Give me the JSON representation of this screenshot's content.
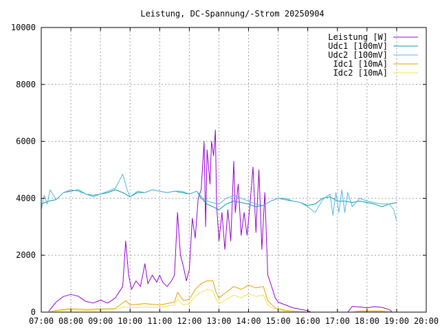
{
  "chart_data": {
    "type": "line",
    "title": "Leistung, DC-Spannung/-Strom 20250904",
    "xlabel": "",
    "ylabel": "",
    "xlim": [
      7,
      20
    ],
    "ylim": [
      0,
      10000
    ],
    "x_ticks": [
      "07:00",
      "08:00",
      "09:00",
      "10:00",
      "11:00",
      "12:00",
      "13:00",
      "14:00",
      "15:00",
      "16:00",
      "17:00",
      "18:00",
      "19:00",
      "20:00"
    ],
    "y_ticks": [
      "0",
      "2000",
      "4000",
      "6000",
      "8000",
      "10000"
    ],
    "grid": true,
    "legend_position": "top-right",
    "series": [
      {
        "name": "Leistung [W]",
        "color": "#9400d3",
        "points": [
          [
            7.25,
            30
          ],
          [
            7.5,
            350
          ],
          [
            7.75,
            550
          ],
          [
            8.0,
            620
          ],
          [
            8.25,
            560
          ],
          [
            8.5,
            380
          ],
          [
            8.75,
            320
          ],
          [
            9.0,
            420
          ],
          [
            9.25,
            320
          ],
          [
            9.5,
            500
          ],
          [
            9.75,
            900
          ],
          [
            9.85,
            2500
          ],
          [
            9.95,
            1300
          ],
          [
            10.05,
            800
          ],
          [
            10.2,
            1100
          ],
          [
            10.35,
            900
          ],
          [
            10.5,
            1700
          ],
          [
            10.6,
            1000
          ],
          [
            10.75,
            1300
          ],
          [
            10.9,
            1050
          ],
          [
            11.0,
            1300
          ],
          [
            11.1,
            1050
          ],
          [
            11.25,
            900
          ],
          [
            11.4,
            1100
          ],
          [
            11.5,
            1300
          ],
          [
            11.6,
            3500
          ],
          [
            11.7,
            2000
          ],
          [
            11.8,
            1600
          ],
          [
            11.9,
            1100
          ],
          [
            12.0,
            1500
          ],
          [
            12.1,
            3300
          ],
          [
            12.2,
            2600
          ],
          [
            12.3,
            4000
          ],
          [
            12.4,
            4300
          ],
          [
            12.5,
            6000
          ],
          [
            12.55,
            3000
          ],
          [
            12.6,
            5700
          ],
          [
            12.7,
            4500
          ],
          [
            12.75,
            6000
          ],
          [
            12.82,
            5500
          ],
          [
            12.88,
            6400
          ],
          [
            12.92,
            3800
          ],
          [
            13.0,
            2500
          ],
          [
            13.1,
            3500
          ],
          [
            13.2,
            2200
          ],
          [
            13.3,
            3600
          ],
          [
            13.4,
            2500
          ],
          [
            13.5,
            5300
          ],
          [
            13.55,
            3500
          ],
          [
            13.65,
            4500
          ],
          [
            13.75,
            2700
          ],
          [
            13.85,
            3500
          ],
          [
            13.95,
            2700
          ],
          [
            14.05,
            3800
          ],
          [
            14.15,
            5100
          ],
          [
            14.25,
            2800
          ],
          [
            14.35,
            5000
          ],
          [
            14.45,
            2200
          ],
          [
            14.55,
            4200
          ],
          [
            14.65,
            1300
          ],
          [
            14.75,
            1000
          ],
          [
            14.9,
            500
          ],
          [
            15.0,
            350
          ],
          [
            15.25,
            250
          ],
          [
            15.5,
            150
          ],
          [
            15.75,
            100
          ],
          [
            16.0,
            50
          ],
          [
            16.1,
            0
          ],
          [
            17.35,
            0
          ],
          [
            17.5,
            200
          ],
          [
            17.75,
            180
          ],
          [
            18.0,
            150
          ],
          [
            18.25,
            190
          ],
          [
            18.5,
            170
          ],
          [
            18.75,
            90
          ],
          [
            18.85,
            0
          ]
        ]
      },
      {
        "name": "Udc1 [100mV]",
        "color": "#009c9c",
        "points": [
          [
            7.0,
            3800
          ],
          [
            7.25,
            3900
          ],
          [
            7.5,
            3950
          ],
          [
            7.75,
            4200
          ],
          [
            8.0,
            4250
          ],
          [
            8.25,
            4300
          ],
          [
            8.5,
            4150
          ],
          [
            8.75,
            4100
          ],
          [
            9.0,
            4150
          ],
          [
            9.25,
            4200
          ],
          [
            9.5,
            4300
          ],
          [
            9.75,
            4200
          ],
          [
            10.0,
            4050
          ],
          [
            10.25,
            4200
          ],
          [
            10.5,
            4200
          ],
          [
            10.75,
            4300
          ],
          [
            11.0,
            4250
          ],
          [
            11.25,
            4200
          ],
          [
            11.5,
            4250
          ],
          [
            11.75,
            4200
          ],
          [
            12.0,
            4150
          ],
          [
            12.25,
            4250
          ],
          [
            12.4,
            4000
          ],
          [
            12.6,
            3800
          ],
          [
            12.8,
            3700
          ],
          [
            13.0,
            3600
          ],
          [
            13.25,
            3800
          ],
          [
            13.5,
            3900
          ],
          [
            13.75,
            3850
          ],
          [
            14.0,
            3800
          ],
          [
            14.25,
            3700
          ],
          [
            14.5,
            3750
          ],
          [
            14.75,
            3900
          ],
          [
            15.0,
            4000
          ],
          [
            15.25,
            3950
          ],
          [
            15.5,
            3900
          ],
          [
            15.75,
            3850
          ],
          [
            16.0,
            3750
          ],
          [
            16.25,
            3800
          ],
          [
            16.5,
            4000
          ],
          [
            16.75,
            4050
          ],
          [
            17.0,
            3900
          ],
          [
            17.25,
            3900
          ],
          [
            17.5,
            3850
          ],
          [
            17.75,
            3900
          ],
          [
            18.0,
            3850
          ],
          [
            18.25,
            3800
          ],
          [
            18.5,
            3700
          ],
          [
            18.75,
            3800
          ],
          [
            19.0,
            3850
          ]
        ]
      },
      {
        "name": "Udc2 [100mV]",
        "color": "#56b4e9",
        "points": [
          [
            7.0,
            3600
          ],
          [
            7.1,
            4100
          ],
          [
            7.2,
            3800
          ],
          [
            7.3,
            4300
          ],
          [
            7.5,
            3950
          ],
          [
            7.75,
            4200
          ],
          [
            8.0,
            4300
          ],
          [
            8.25,
            4250
          ],
          [
            8.5,
            4150
          ],
          [
            8.75,
            4050
          ],
          [
            9.0,
            4150
          ],
          [
            9.25,
            4250
          ],
          [
            9.5,
            4350
          ],
          [
            9.75,
            4850
          ],
          [
            9.9,
            4300
          ],
          [
            10.0,
            4050
          ],
          [
            10.25,
            4250
          ],
          [
            10.5,
            4200
          ],
          [
            10.75,
            4300
          ],
          [
            11.0,
            4250
          ],
          [
            11.25,
            4200
          ],
          [
            11.5,
            4250
          ],
          [
            11.75,
            4250
          ],
          [
            12.0,
            4150
          ],
          [
            12.25,
            4250
          ],
          [
            12.5,
            3950
          ],
          [
            12.75,
            3850
          ],
          [
            13.0,
            3800
          ],
          [
            13.25,
            4000
          ],
          [
            13.5,
            4100
          ],
          [
            13.75,
            4000
          ],
          [
            14.0,
            3900
          ],
          [
            14.25,
            3800
          ],
          [
            14.5,
            3750
          ],
          [
            14.75,
            3900
          ],
          [
            15.0,
            4000
          ],
          [
            15.25,
            4000
          ],
          [
            15.5,
            3900
          ],
          [
            15.75,
            3850
          ],
          [
            16.0,
            3700
          ],
          [
            16.25,
            3500
          ],
          [
            16.5,
            3950
          ],
          [
            16.75,
            4150
          ],
          [
            16.85,
            3400
          ],
          [
            16.95,
            4200
          ],
          [
            17.05,
            3500
          ],
          [
            17.15,
            4300
          ],
          [
            17.25,
            3500
          ],
          [
            17.35,
            4200
          ],
          [
            17.5,
            3700
          ],
          [
            17.75,
            4000
          ],
          [
            18.0,
            3900
          ],
          [
            18.25,
            3850
          ],
          [
            18.5,
            3800
          ],
          [
            18.75,
            3800
          ],
          [
            18.9,
            3600
          ],
          [
            19.0,
            3200
          ]
        ]
      },
      {
        "name": "Idc1 [10mA]",
        "color": "#e69f00",
        "points": [
          [
            7.25,
            0
          ],
          [
            7.5,
            60
          ],
          [
            8.0,
            120
          ],
          [
            8.5,
            90
          ],
          [
            9.0,
            110
          ],
          [
            9.5,
            130
          ],
          [
            9.85,
            400
          ],
          [
            10.0,
            250
          ],
          [
            10.5,
            300
          ],
          [
            11.0,
            250
          ],
          [
            11.5,
            350
          ],
          [
            11.6,
            700
          ],
          [
            11.8,
            400
          ],
          [
            12.0,
            450
          ],
          [
            12.2,
            800
          ],
          [
            12.4,
            1000
          ],
          [
            12.6,
            1100
          ],
          [
            12.8,
            1100
          ],
          [
            12.9,
            700
          ],
          [
            13.0,
            500
          ],
          [
            13.25,
            700
          ],
          [
            13.5,
            900
          ],
          [
            13.75,
            800
          ],
          [
            14.0,
            950
          ],
          [
            14.25,
            850
          ],
          [
            14.5,
            900
          ],
          [
            14.65,
            400
          ],
          [
            14.9,
            150
          ],
          [
            15.25,
            60
          ],
          [
            15.75,
            20
          ],
          [
            16.0,
            0
          ],
          [
            17.5,
            0
          ],
          [
            17.75,
            40
          ],
          [
            18.5,
            40
          ],
          [
            18.85,
            0
          ]
        ]
      },
      {
        "name": "Idc2 [10mA]",
        "color": "#f0e442",
        "points": [
          [
            7.25,
            0
          ],
          [
            7.5,
            40
          ],
          [
            8.0,
            80
          ],
          [
            8.5,
            60
          ],
          [
            9.0,
            70
          ],
          [
            9.5,
            90
          ],
          [
            9.85,
            200
          ],
          [
            10.0,
            150
          ],
          [
            10.5,
            180
          ],
          [
            11.0,
            160
          ],
          [
            11.5,
            250
          ],
          [
            11.6,
            450
          ],
          [
            11.8,
            250
          ],
          [
            12.0,
            300
          ],
          [
            12.2,
            550
          ],
          [
            12.4,
            700
          ],
          [
            12.6,
            800
          ],
          [
            12.8,
            750
          ],
          [
            12.9,
            450
          ],
          [
            13.0,
            300
          ],
          [
            13.25,
            450
          ],
          [
            13.5,
            600
          ],
          [
            13.75,
            500
          ],
          [
            14.0,
            650
          ],
          [
            14.25,
            550
          ],
          [
            14.5,
            600
          ],
          [
            14.65,
            250
          ],
          [
            14.9,
            100
          ],
          [
            15.25,
            40
          ],
          [
            15.75,
            15
          ],
          [
            16.0,
            0
          ],
          [
            17.5,
            0
          ],
          [
            17.75,
            25
          ],
          [
            18.5,
            25
          ],
          [
            18.85,
            0
          ]
        ]
      }
    ]
  }
}
